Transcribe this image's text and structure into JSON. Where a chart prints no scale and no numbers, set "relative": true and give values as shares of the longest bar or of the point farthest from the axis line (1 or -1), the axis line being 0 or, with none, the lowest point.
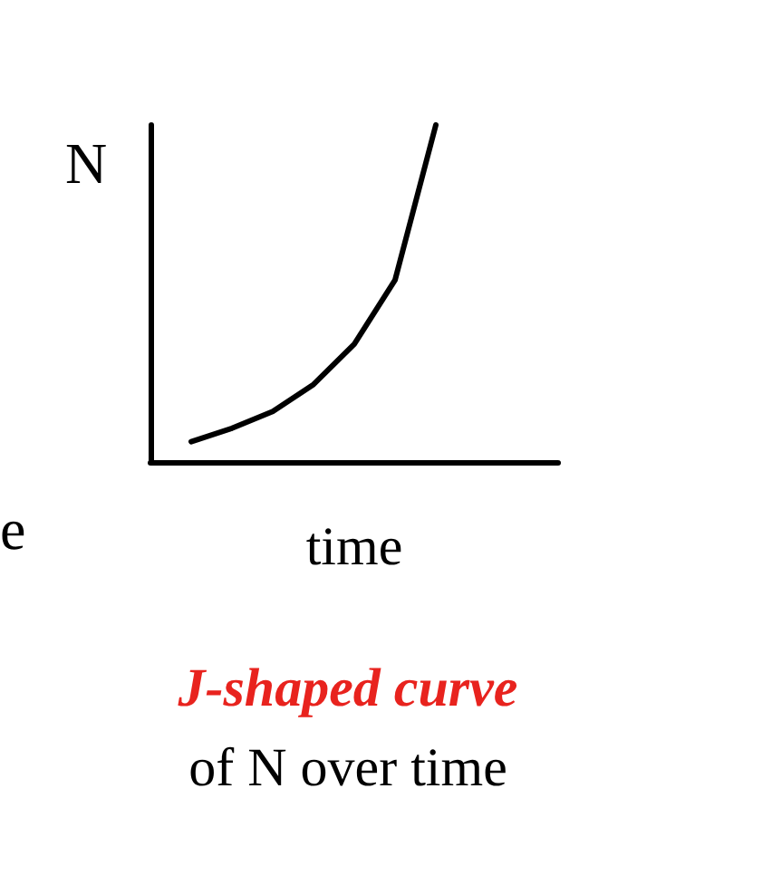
{
  "chart_data": {
    "type": "line",
    "title": "J-shaped curve",
    "subtitle": "of N over time",
    "xlabel": "time",
    "ylabel": "N",
    "annotations": [
      "e"
    ],
    "categories": [
      null,
      null,
      null,
      null,
      null,
      null,
      null,
      null,
      null,
      null,
      null
    ],
    "series": [
      {
        "color": "#000000",
        "values": [
          null,
          0.06,
          0.1,
          0.15,
          0.23,
          0.35,
          0.54,
          1.0,
          null,
          null,
          null
        ]
      }
    ],
    "relative": true,
    "grid": false,
    "marker": "none",
    "line_style": "solid"
  }
}
